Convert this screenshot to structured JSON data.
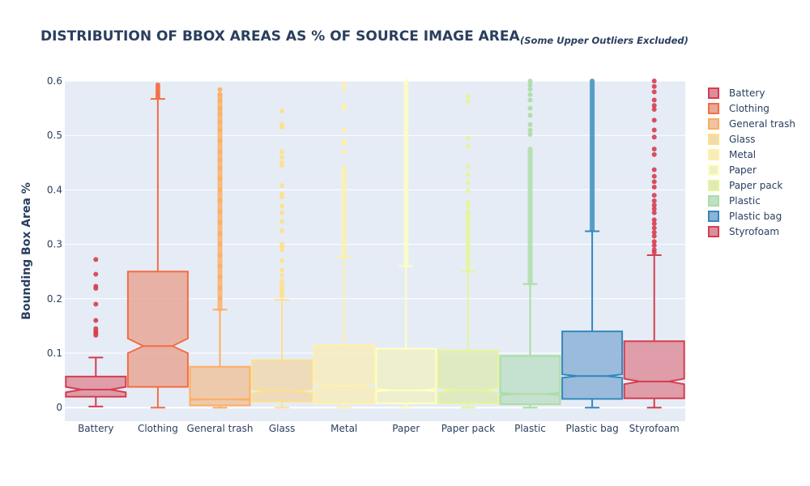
{
  "chart_data": {
    "type": "box",
    "title": "DISTRIBUTION OF BBOX AREAS AS % OF SOURCE IMAGE AREA",
    "subtitle": "(Some Upper Outliers Excluded)",
    "xlabel": "",
    "ylabel": "Bounding Box Area %",
    "ylim": [
      -0.025,
      0.6
    ],
    "yticks": [
      0,
      0.1,
      0.2,
      0.3,
      0.4,
      0.5,
      0.6
    ],
    "ytick_labels": [
      "0",
      "0.1",
      "0.2",
      "0.3",
      "0.4",
      "0.5",
      "0.6"
    ],
    "grid": true,
    "notched": true,
    "legend_position": "right",
    "categories": [
      "Battery",
      "Clothing",
      "General trash",
      "Glass",
      "Metal",
      "Paper",
      "Paper pack",
      "Plastic",
      "Plastic bag",
      "Styrofoam"
    ],
    "series": [
      {
        "name": "Battery",
        "color": "#d53e4f",
        "fill": "#de8e9b",
        "lower_fence": 0.002,
        "q1": 0.02,
        "median": 0.033,
        "q3": 0.057,
        "upper_fence": 0.092,
        "notch_low": 0.028,
        "notch_high": 0.038,
        "outliers": [
          0.272,
          0.245,
          0.223,
          0.219,
          0.19,
          0.16,
          0.145,
          0.14,
          0.137,
          0.133
        ]
      },
      {
        "name": "Clothing",
        "color": "#f46d43",
        "fill": "#e8a896",
        "lower_fence": 0.0,
        "q1": 0.038,
        "median": 0.113,
        "q3": 0.25,
        "upper_fence": 0.567,
        "notch_low": 0.1,
        "notch_high": 0.127,
        "outliers": [
          0.593,
          0.588,
          0.583,
          0.578,
          0.574,
          0.57
        ]
      },
      {
        "name": "General trash",
        "color": "#fdae61",
        "fill": "#f0c4a0",
        "lower_fence": 0.0,
        "q1": 0.004,
        "median": 0.015,
        "q3": 0.075,
        "upper_fence": 0.18,
        "notch_low": 0.014,
        "notch_high": 0.016,
        "outlier_band": [
          0.181,
          0.575
        ],
        "outliers": [
          0.584,
          0.575,
          0.564,
          0.55,
          0.54,
          0.525,
          0.51,
          0.49,
          0.47,
          0.455,
          0.44,
          0.42,
          0.4,
          0.38,
          0.36,
          0.34,
          0.32,
          0.3,
          0.28,
          0.26,
          0.24,
          0.22,
          0.2
        ]
      },
      {
        "name": "Glass",
        "color": "#fee08b",
        "fill": "#f0d8b0",
        "lower_fence": 0.0,
        "q1": 0.011,
        "median": 0.03,
        "q3": 0.087,
        "upper_fence": 0.198,
        "notch_low": 0.026,
        "notch_high": 0.034,
        "outliers": [
          0.545,
          0.52,
          0.515,
          0.47,
          0.46,
          0.45,
          0.445,
          0.408,
          0.392,
          0.387,
          0.37,
          0.358,
          0.342,
          0.325,
          0.3,
          0.295,
          0.29,
          0.27,
          0.253,
          0.243,
          0.232,
          0.225,
          0.22,
          0.215,
          0.21,
          0.205
        ]
      },
      {
        "name": "Metal",
        "color": "#fff1a8",
        "fill": "#f6ecbd",
        "lower_fence": 0.0,
        "q1": 0.008,
        "median": 0.04,
        "q3": 0.115,
        "upper_fence": 0.277,
        "notch_low": 0.035,
        "notch_high": 0.045,
        "outlier_band": [
          0.28,
          0.44
        ],
        "outliers": [
          0.595,
          0.585,
          0.555,
          0.55,
          0.51,
          0.49,
          0.485,
          0.47
        ]
      },
      {
        "name": "Paper",
        "color": "#ffffbf",
        "fill": "#f0f0c8",
        "lower_fence": 0.0,
        "q1": 0.008,
        "median": 0.032,
        "q3": 0.108,
        "upper_fence": 0.26,
        "notch_low": 0.03,
        "notch_high": 0.034,
        "outlier_band": [
          0.262,
          0.6
        ],
        "outliers": []
      },
      {
        "name": "Paper pack",
        "color": "#e6f598",
        "fill": "#dfeab8",
        "lower_fence": 0.0,
        "q1": 0.008,
        "median": 0.032,
        "q3": 0.105,
        "upper_fence": 0.25,
        "notch_low": 0.027,
        "notch_high": 0.037,
        "outlier_band": [
          0.252,
          0.35
        ],
        "outliers": [
          0.572,
          0.562,
          0.495,
          0.48,
          0.443,
          0.428,
          0.413,
          0.398,
          0.377,
          0.37,
          0.36,
          0.355
        ]
      },
      {
        "name": "Plastic",
        "color": "#abdda4",
        "fill": "#c0dfc8",
        "lower_fence": 0.0,
        "q1": 0.006,
        "median": 0.025,
        "q3": 0.095,
        "upper_fence": 0.227,
        "notch_low": 0.023,
        "notch_high": 0.027,
        "outlier_band": [
          0.229,
          0.475
        ],
        "outliers": [
          0.6,
          0.593,
          0.585,
          0.575,
          0.565,
          0.55,
          0.537,
          0.52,
          0.51,
          0.502
        ]
      },
      {
        "name": "Plastic bag",
        "color": "#3288bd",
        "fill": "#8db3d6",
        "lower_fence": 0.0,
        "q1": 0.016,
        "median": 0.058,
        "q3": 0.14,
        "upper_fence": 0.324,
        "notch_low": 0.055,
        "notch_high": 0.061,
        "outlier_band": [
          0.326,
          0.6
        ],
        "outliers": []
      },
      {
        "name": "Styrofoam",
        "color": "#d53e4f",
        "fill": "#de8e9b",
        "lower_fence": 0.0,
        "q1": 0.017,
        "median": 0.048,
        "q3": 0.122,
        "upper_fence": 0.28,
        "notch_low": 0.043,
        "notch_high": 0.053,
        "outliers": [
          0.6,
          0.59,
          0.58,
          0.565,
          0.555,
          0.548,
          0.528,
          0.51,
          0.497,
          0.475,
          0.465,
          0.437,
          0.425,
          0.415,
          0.405,
          0.39,
          0.38,
          0.372,
          0.365,
          0.358,
          0.345,
          0.338,
          0.33,
          0.322,
          0.315,
          0.305,
          0.298,
          0.29,
          0.285
        ]
      }
    ]
  }
}
